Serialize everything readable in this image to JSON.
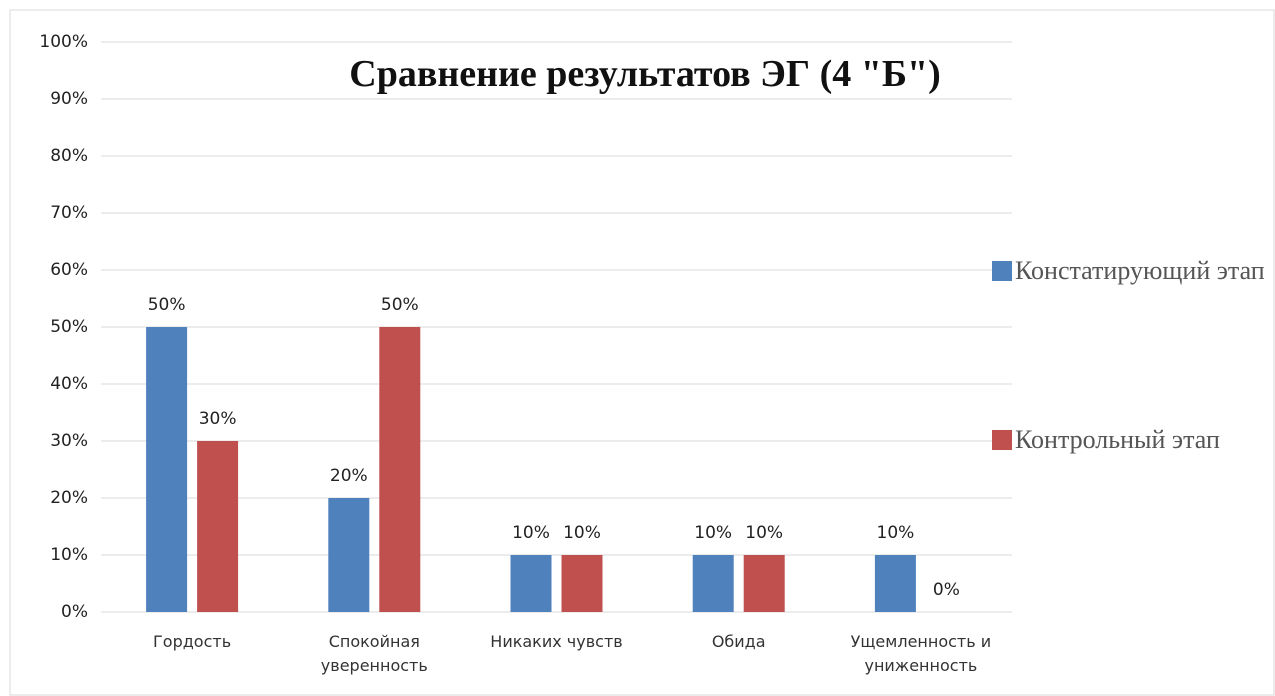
{
  "chart_data": {
    "type": "bar",
    "title": "Сравнение результатов ЭГ (4 \"Б\")",
    "categories": [
      "Гордость",
      "Спокойная уверенность",
      "Никаких чувств",
      "Обида",
      "Ущемленность и униженность"
    ],
    "series": [
      {
        "name": "Констатирующий этап",
        "color": "#4f81bd",
        "values": [
          50,
          20,
          10,
          10,
          10
        ],
        "value_labels": [
          "50%",
          "20%",
          "10%",
          "10%",
          "10%"
        ]
      },
      {
        "name": "Контрольный этап",
        "color": "#c0504d",
        "values": [
          30,
          50,
          10,
          10,
          0
        ],
        "value_labels": [
          "30%",
          "50%",
          "10%",
          "10%",
          "0%"
        ]
      }
    ],
    "ylim": [
      0,
      100
    ],
    "yticks": [
      {
        "value": 0,
        "label": "0%"
      },
      {
        "value": 10,
        "label": "10%"
      },
      {
        "value": 20,
        "label": "20%"
      },
      {
        "value": 30,
        "label": "30%"
      },
      {
        "value": 40,
        "label": "40%"
      },
      {
        "value": 50,
        "label": "50%"
      },
      {
        "value": 60,
        "label": "60%"
      },
      {
        "value": 70,
        "label": "70%"
      },
      {
        "value": 80,
        "label": "80%"
      },
      {
        "value": 90,
        "label": "90%"
      },
      {
        "value": 100,
        "label": "100%"
      }
    ],
    "grid": true,
    "legend": "right"
  }
}
